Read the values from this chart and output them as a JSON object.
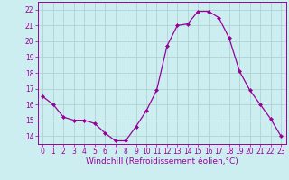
{
  "x": [
    0,
    1,
    2,
    3,
    4,
    5,
    6,
    7,
    8,
    9,
    10,
    11,
    12,
    13,
    14,
    15,
    16,
    17,
    18,
    19,
    20,
    21,
    22,
    23
  ],
  "y": [
    16.5,
    16.0,
    15.2,
    15.0,
    15.0,
    14.8,
    14.2,
    13.7,
    13.7,
    14.6,
    15.6,
    16.9,
    19.7,
    21.0,
    21.1,
    21.9,
    21.9,
    21.5,
    20.2,
    18.1,
    16.9,
    16.0,
    15.1,
    14.0
  ],
  "line_color": "#990099",
  "marker": "D",
  "marker_size": 2.0,
  "bg_color": "#cceef0",
  "grid_color": "#aacccc",
  "xlabel": "Windchill (Refroidissement éolien,°C)",
  "xlabel_fontsize": 6.5,
  "tick_fontsize": 5.5,
  "ylim": [
    13.5,
    22.5
  ],
  "yticks": [
    14,
    15,
    16,
    17,
    18,
    19,
    20,
    21,
    22
  ],
  "xtick_labels": [
    "0",
    "1",
    "2",
    "3",
    "4",
    "5",
    "6",
    "7",
    "8",
    "9",
    "10",
    "11",
    "12",
    "13",
    "14",
    "15",
    "16",
    "17",
    "18",
    "19",
    "20",
    "21",
    "22",
    "23"
  ],
  "linewidth": 0.9
}
